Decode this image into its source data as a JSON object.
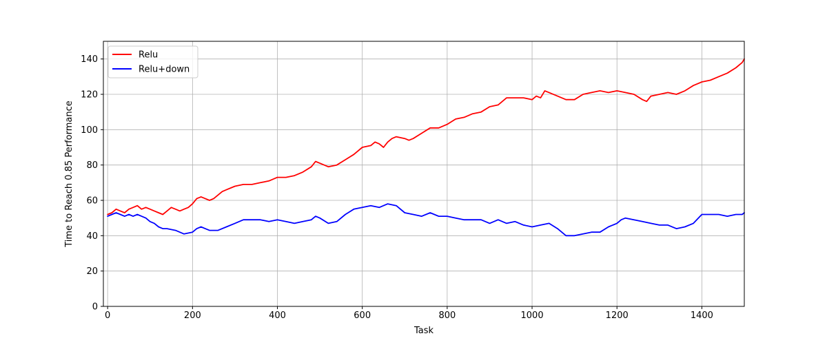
{
  "chart_data": {
    "type": "line",
    "title": "",
    "xlabel": "Task",
    "ylabel": "Time to Reach 0.85 Performance",
    "xlim": [
      -10,
      1500
    ],
    "ylim": [
      0,
      150
    ],
    "xticks": [
      0,
      200,
      400,
      600,
      800,
      1000,
      1200,
      1400
    ],
    "yticks": [
      0,
      20,
      40,
      60,
      80,
      100,
      120,
      140
    ],
    "grid": true,
    "legend_position": "top-left",
    "series": [
      {
        "name": "Relu",
        "color": "#ff0000",
        "x": [
          0,
          10,
          20,
          30,
          40,
          50,
          60,
          70,
          80,
          90,
          100,
          110,
          120,
          130,
          140,
          150,
          160,
          170,
          180,
          190,
          200,
          210,
          220,
          230,
          240,
          250,
          260,
          270,
          280,
          290,
          300,
          320,
          340,
          360,
          380,
          400,
          420,
          440,
          460,
          480,
          490,
          500,
          520,
          540,
          560,
          580,
          600,
          620,
          630,
          640,
          650,
          660,
          670,
          680,
          700,
          710,
          720,
          740,
          760,
          780,
          800,
          820,
          840,
          860,
          880,
          900,
          920,
          940,
          960,
          980,
          1000,
          1010,
          1020,
          1030,
          1040,
          1060,
          1080,
          1100,
          1120,
          1140,
          1160,
          1180,
          1200,
          1220,
          1240,
          1260,
          1270,
          1280,
          1300,
          1320,
          1340,
          1360,
          1380,
          1400,
          1420,
          1440,
          1460,
          1480,
          1495,
          1500
        ],
        "y": [
          52,
          53,
          55,
          54,
          53,
          55,
          56,
          57,
          55,
          56,
          55,
          54,
          53,
          52,
          54,
          56,
          55,
          54,
          55,
          56,
          58,
          61,
          62,
          61,
          60,
          61,
          63,
          65,
          66,
          67,
          68,
          69,
          69,
          70,
          71,
          73,
          73,
          74,
          76,
          79,
          82,
          81,
          79,
          80,
          83,
          86,
          90,
          91,
          93,
          92,
          90,
          93,
          95,
          96,
          95,
          94,
          95,
          98,
          101,
          101,
          103,
          106,
          107,
          109,
          110,
          113,
          114,
          118,
          118,
          118,
          117,
          119,
          118,
          122,
          121,
          119,
          117,
          117,
          120,
          121,
          122,
          121,
          122,
          121,
          120,
          117,
          116,
          119,
          120,
          121,
          120,
          122,
          125,
          127,
          128,
          130,
          132,
          135,
          138,
          140
        ]
      },
      {
        "name": "Relu+down",
        "color": "#0000ff",
        "x": [
          0,
          10,
          20,
          30,
          40,
          50,
          60,
          70,
          80,
          90,
          100,
          110,
          120,
          130,
          140,
          160,
          180,
          200,
          210,
          220,
          230,
          240,
          260,
          280,
          300,
          320,
          340,
          360,
          380,
          400,
          420,
          440,
          460,
          480,
          490,
          500,
          520,
          540,
          560,
          580,
          600,
          620,
          640,
          660,
          680,
          700,
          720,
          740,
          760,
          780,
          800,
          820,
          840,
          860,
          880,
          900,
          920,
          940,
          960,
          980,
          1000,
          1020,
          1040,
          1060,
          1080,
          1100,
          1120,
          1140,
          1160,
          1180,
          1200,
          1210,
          1220,
          1240,
          1260,
          1280,
          1300,
          1320,
          1340,
          1360,
          1380,
          1400,
          1420,
          1440,
          1460,
          1480,
          1495,
          1500
        ],
        "y": [
          51,
          52,
          53,
          52,
          51,
          52,
          51,
          52,
          51,
          50,
          48,
          47,
          45,
          44,
          44,
          43,
          41,
          42,
          44,
          45,
          44,
          43,
          43,
          45,
          47,
          49,
          49,
          49,
          48,
          49,
          48,
          47,
          48,
          49,
          51,
          50,
          47,
          48,
          52,
          55,
          56,
          57,
          56,
          58,
          57,
          53,
          52,
          51,
          53,
          51,
          51,
          50,
          49,
          49,
          49,
          47,
          49,
          47,
          48,
          46,
          45,
          46,
          47,
          44,
          40,
          40,
          41,
          42,
          42,
          45,
          47,
          49,
          50,
          49,
          48,
          47,
          46,
          46,
          44,
          45,
          47,
          52,
          52,
          52,
          51,
          52,
          52,
          53
        ]
      }
    ]
  }
}
